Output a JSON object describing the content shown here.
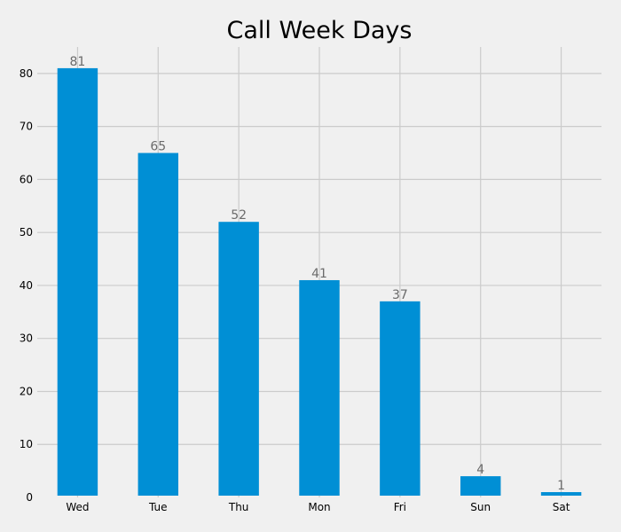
{
  "chart_data": {
    "type": "bar",
    "title": "Call Week Days",
    "xlabel": "",
    "ylabel": "",
    "categories": [
      "Wed",
      "Tue",
      "Thu",
      "Mon",
      "Fri",
      "Sun",
      "Sat"
    ],
    "values": [
      81,
      65,
      52,
      41,
      37,
      4,
      1
    ],
    "ylim": [
      0,
      85
    ],
    "yticks": [
      0,
      10,
      20,
      30,
      40,
      50,
      60,
      70,
      80
    ],
    "grid": true,
    "legend": "none",
    "bar_color": "#008fd5",
    "background_color": "#f0f0f0",
    "grid_color": "#cbcbcb",
    "label_color": "#6b6b6b"
  }
}
